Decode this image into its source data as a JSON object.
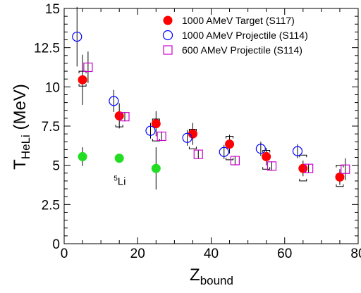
{
  "chart_data": {
    "type": "scatter",
    "title": "",
    "xlabel": "Z",
    "xlabel_sub": "bound",
    "ylabel": "T",
    "ylabel_sub": "HeLi",
    "ylabel_unit": " (MeV)",
    "xlim": [
      0,
      80
    ],
    "ylim": [
      0,
      15
    ],
    "x_ticks": [
      0,
      20,
      40,
      60,
      80
    ],
    "x_tick_labels": [
      "0",
      "20",
      "40",
      "60",
      "80"
    ],
    "y_ticks": [
      0,
      2.5,
      5,
      7.5,
      10,
      12.5,
      15
    ],
    "y_tick_labels": [
      "0",
      "2.5",
      "5",
      "7.5",
      "10",
      "12.5",
      "15"
    ],
    "grid": false,
    "legend_position": "top-right",
    "series": [
      {
        "name": "1000 AMeV Target  (S117)",
        "marker": "filled-circle",
        "color": "#ff0000",
        "points": [
          {
            "x": 5,
            "y": 10.45,
            "err": 1.6,
            "sys": [
              10.05,
              11.0
            ]
          },
          {
            "x": 15,
            "y": 8.15,
            "err": 0.8,
            "sys": [
              7.45,
              8.25
            ]
          },
          {
            "x": 25,
            "y": 7.65,
            "err": 0.8,
            "sys": [
              6.55,
              7.95
            ]
          },
          {
            "x": 35,
            "y": 7.0,
            "err": 0.7,
            "sys": [
              6.05,
              7.3
            ]
          },
          {
            "x": 45,
            "y": 6.35,
            "err": 0.6,
            "sys": [
              5.35,
              6.85
            ]
          },
          {
            "x": 55,
            "y": 5.55,
            "err": 0.55,
            "sys": [
              4.75,
              5.95
            ]
          },
          {
            "x": 65,
            "y": 4.8,
            "err": 0.5,
            "sys": [
              4.0,
              5.65
            ]
          },
          {
            "x": 75,
            "y": 4.25,
            "err": 0.5,
            "sys": [
              3.65,
              5.0
            ]
          }
        ]
      },
      {
        "name": "1000 AMeV Projectile (S114)",
        "marker": "open-circle",
        "color": "#0000ff",
        "points": [
          {
            "x": 3.5,
            "y": 13.2,
            "err": 1.9
          },
          {
            "x": 13.5,
            "y": 9.1,
            "err": 0.7
          },
          {
            "x": 23.5,
            "y": 7.2,
            "err": 0.5
          },
          {
            "x": 33.5,
            "y": 6.75,
            "err": 0.5
          },
          {
            "x": 43.5,
            "y": 5.85,
            "err": 0.45
          },
          {
            "x": 53.5,
            "y": 6.05,
            "err": 0.45
          },
          {
            "x": 63.5,
            "y": 5.9,
            "err": 0.45
          }
        ]
      },
      {
        "name": "600 AMeV Projectile (S114)",
        "marker": "open-square",
        "color": "#cc00cc",
        "points": [
          {
            "x": 6.5,
            "y": 11.25,
            "err": 1.0
          },
          {
            "x": 16.5,
            "y": 8.1,
            "err": 0.3
          },
          {
            "x": 26.5,
            "y": 6.85,
            "err": 0.3
          },
          {
            "x": 36.5,
            "y": 5.7,
            "err": 0.3
          },
          {
            "x": 46.5,
            "y": 5.3,
            "err": 0.3
          },
          {
            "x": 56.5,
            "y": 4.95,
            "err": 0.3
          },
          {
            "x": 66.5,
            "y": 4.8,
            "err": 0.3
          },
          {
            "x": 76.5,
            "y": 4.75,
            "err": 0.7
          }
        ]
      },
      {
        "name": "",
        "marker": "filled-circle",
        "color": "#22dd22",
        "points": [
          {
            "x": 5,
            "y": 5.55,
            "err": 0.6
          },
          {
            "x": 15,
            "y": 5.45,
            "err": 0.15
          },
          {
            "x": 25,
            "y": 4.8,
            "err": 1.35
          }
        ]
      }
    ],
    "annotations": [
      {
        "x": 15,
        "y": 4.2,
        "sup": "5",
        "text": "Li"
      }
    ]
  }
}
